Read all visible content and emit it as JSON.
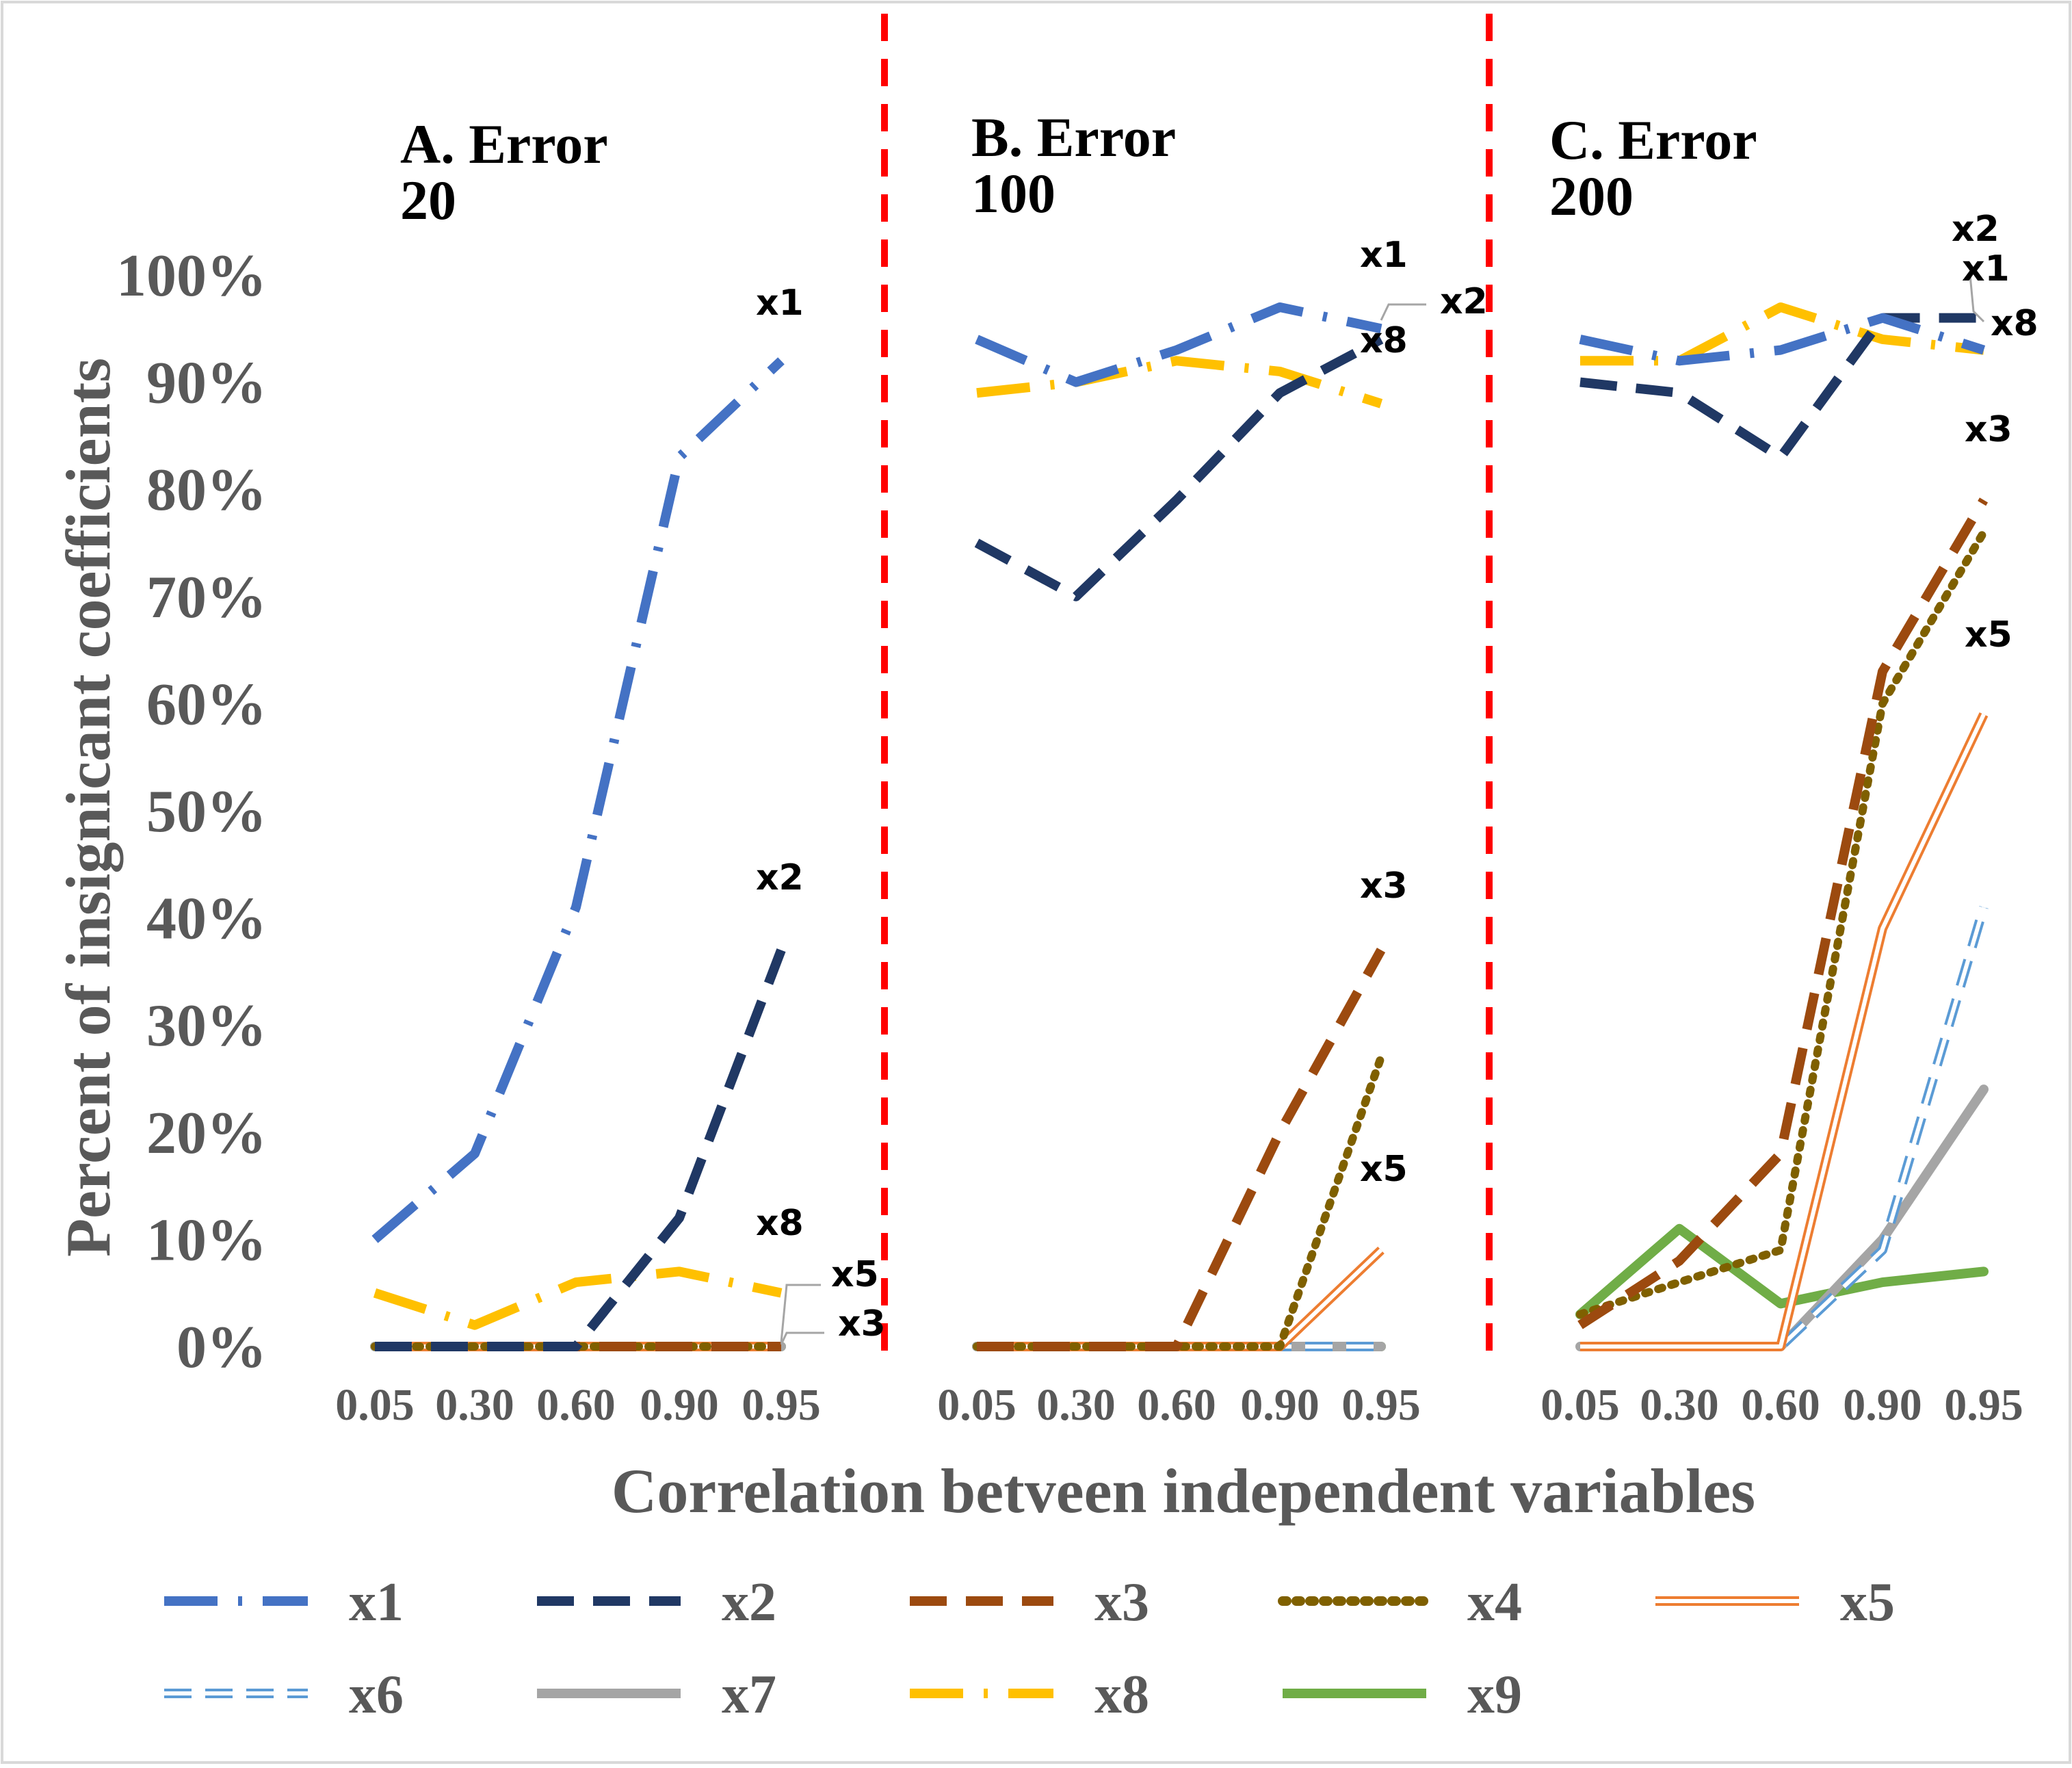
{
  "chart_data": {
    "type": "line",
    "ylabel": "Percent of insignicant coefficients",
    "xlabel": "Correlation betveen independent variables",
    "ylim": [
      0,
      1
    ],
    "yticks": [
      "0%",
      "10%",
      "20%",
      "30%",
      "40%",
      "50%",
      "60%",
      "70%",
      "80%",
      "90%",
      "100%"
    ],
    "categories": [
      "0.05",
      "0.30",
      "0.60",
      "0.90",
      "0.95"
    ],
    "series_styles": [
      {
        "name": "x1",
        "color": "#4472C4",
        "dash": "long-dash-dot"
      },
      {
        "name": "x2",
        "color": "#203864",
        "dash": "dash"
      },
      {
        "name": "x3",
        "color": "#9C4A0F",
        "dash": "dash"
      },
      {
        "name": "x4",
        "color": "#7F6000",
        "dash": "dot"
      },
      {
        "name": "x5",
        "color": "#ED7D31",
        "dash": "double"
      },
      {
        "name": "x6",
        "color": "#5B9BD5",
        "dash": "double-dash"
      },
      {
        "name": "x7",
        "color": "#A5A5A5",
        "dash": "solid"
      },
      {
        "name": "x8",
        "color": "#FFC000",
        "dash": "long-dash-dot"
      },
      {
        "name": "x9",
        "color": "#70AD47",
        "dash": "solid"
      }
    ],
    "panels": [
      {
        "title_line1": "A. Error",
        "title_line2": "20",
        "series": [
          {
            "name": "x1",
            "values": [
              0.1,
              0.18,
              0.41,
              0.83,
              0.92
            ]
          },
          {
            "name": "x2",
            "values": [
              0.0,
              0.0,
              0.0,
              0.12,
              0.37
            ]
          },
          {
            "name": "x3",
            "values": [
              0.0,
              0.0,
              0.0,
              0.0,
              0.0
            ]
          },
          {
            "name": "x4",
            "values": [
              0.0,
              0.0,
              0.0,
              0.0,
              0.0
            ]
          },
          {
            "name": "x5",
            "values": [
              0.0,
              0.0,
              0.0,
              0.0,
              0.0
            ]
          },
          {
            "name": "x6",
            "values": [
              0.0,
              0.0,
              0.0,
              0.0,
              0.0
            ]
          },
          {
            "name": "x7",
            "values": [
              0.0,
              0.0,
              0.0,
              0.0,
              0.0
            ]
          },
          {
            "name": "x8",
            "values": [
              0.05,
              0.02,
              0.06,
              0.07,
              0.05
            ]
          },
          {
            "name": "x9",
            "values": [
              0.0,
              0.0,
              0.0,
              0.0,
              0.0
            ]
          }
        ],
        "labels": [
          "x1",
          "x2",
          "x8",
          "x5",
          "x3"
        ]
      },
      {
        "title_line1": "B. Error",
        "title_line2": "100",
        "series": [
          {
            "name": "x1",
            "values": [
              0.94,
              0.9,
              0.93,
              0.97,
              0.95
            ]
          },
          {
            "name": "x2",
            "values": [
              0.75,
              0.7,
              0.79,
              0.89,
              0.94
            ]
          },
          {
            "name": "x3",
            "values": [
              0.0,
              0.0,
              0.0,
              0.2,
              0.37
            ]
          },
          {
            "name": "x4",
            "values": [
              0.0,
              0.0,
              0.0,
              0.0,
              0.27
            ]
          },
          {
            "name": "x5",
            "values": [
              0.0,
              0.0,
              0.0,
              0.0,
              0.09
            ]
          },
          {
            "name": "x6",
            "values": [
              0.0,
              0.0,
              0.0,
              0.0,
              0.0
            ]
          },
          {
            "name": "x7",
            "values": [
              0.0,
              0.0,
              0.0,
              0.0,
              0.0
            ]
          },
          {
            "name": "x8",
            "values": [
              0.89,
              0.9,
              0.92,
              0.91,
              0.88
            ]
          },
          {
            "name": "x9",
            "values": [
              0.0,
              0.0,
              0.0,
              0.0,
              0.0
            ]
          }
        ],
        "labels": [
          "x1",
          "x2",
          "x8",
          "x3",
          "x5"
        ]
      },
      {
        "title_line1": "C. Error",
        "title_line2": "200",
        "series": [
          {
            "name": "x1",
            "values": [
              0.94,
              0.92,
              0.93,
              0.96,
              0.93
            ]
          },
          {
            "name": "x2",
            "values": [
              0.9,
              0.89,
              0.83,
              0.96,
              0.96
            ]
          },
          {
            "name": "x3",
            "values": [
              0.02,
              0.08,
              0.18,
              0.63,
              0.79
            ]
          },
          {
            "name": "x4",
            "values": [
              0.03,
              0.06,
              0.09,
              0.6,
              0.76
            ]
          },
          {
            "name": "x5",
            "values": [
              0.0,
              0.0,
              0.0,
              0.39,
              0.59
            ]
          },
          {
            "name": "x6",
            "values": [
              0.0,
              0.0,
              0.0,
              0.09,
              0.41
            ]
          },
          {
            "name": "x7",
            "values": [
              0.0,
              0.0,
              0.0,
              0.1,
              0.24
            ]
          },
          {
            "name": "x8",
            "values": [
              0.92,
              0.92,
              0.97,
              0.94,
              0.93
            ]
          },
          {
            "name": "x9",
            "values": [
              0.03,
              0.11,
              0.04,
              0.06,
              0.07
            ]
          }
        ],
        "labels": [
          "x2",
          "x1",
          "x8",
          "x3",
          "x5"
        ]
      }
    ],
    "separator_color": "#FF0000",
    "legend": [
      "x1",
      "x2",
      "x3",
      "x4",
      "x5",
      "x6",
      "x7",
      "x8",
      "x9"
    ]
  }
}
